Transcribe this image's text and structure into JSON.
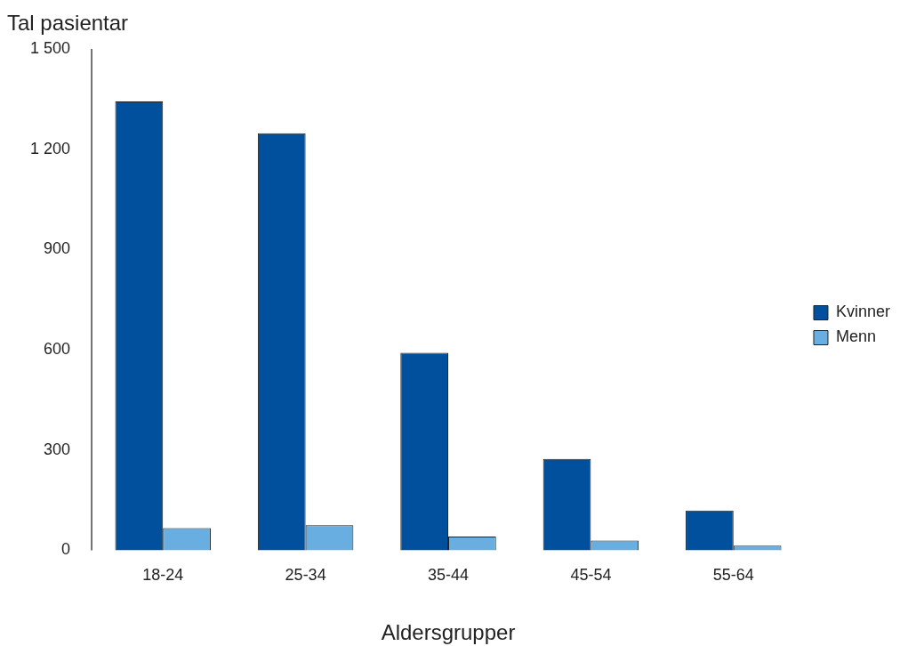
{
  "chart_data": {
    "type": "bar",
    "xlabel": "Aldersgrupper",
    "ylabel": "Tal pasientar",
    "categories": [
      "18-24",
      "25-34",
      "35-44",
      "45-54",
      "55-64"
    ],
    "series": [
      {
        "name": "Kvinner",
        "color": "#00509e",
        "values": [
          1343,
          1248,
          591,
          273,
          119
        ]
      },
      {
        "name": "Menn",
        "color": "#68aee0",
        "values": [
          66,
          75,
          41,
          29,
          14
        ]
      }
    ],
    "ylim": [
      0,
      1500
    ],
    "yticks": [
      0,
      300,
      600,
      900,
      {
        "value": 1200,
        "label": "1 200"
      },
      {
        "value": 1500,
        "label": "1 500"
      }
    ],
    "grid": false,
    "legend": "right"
  }
}
